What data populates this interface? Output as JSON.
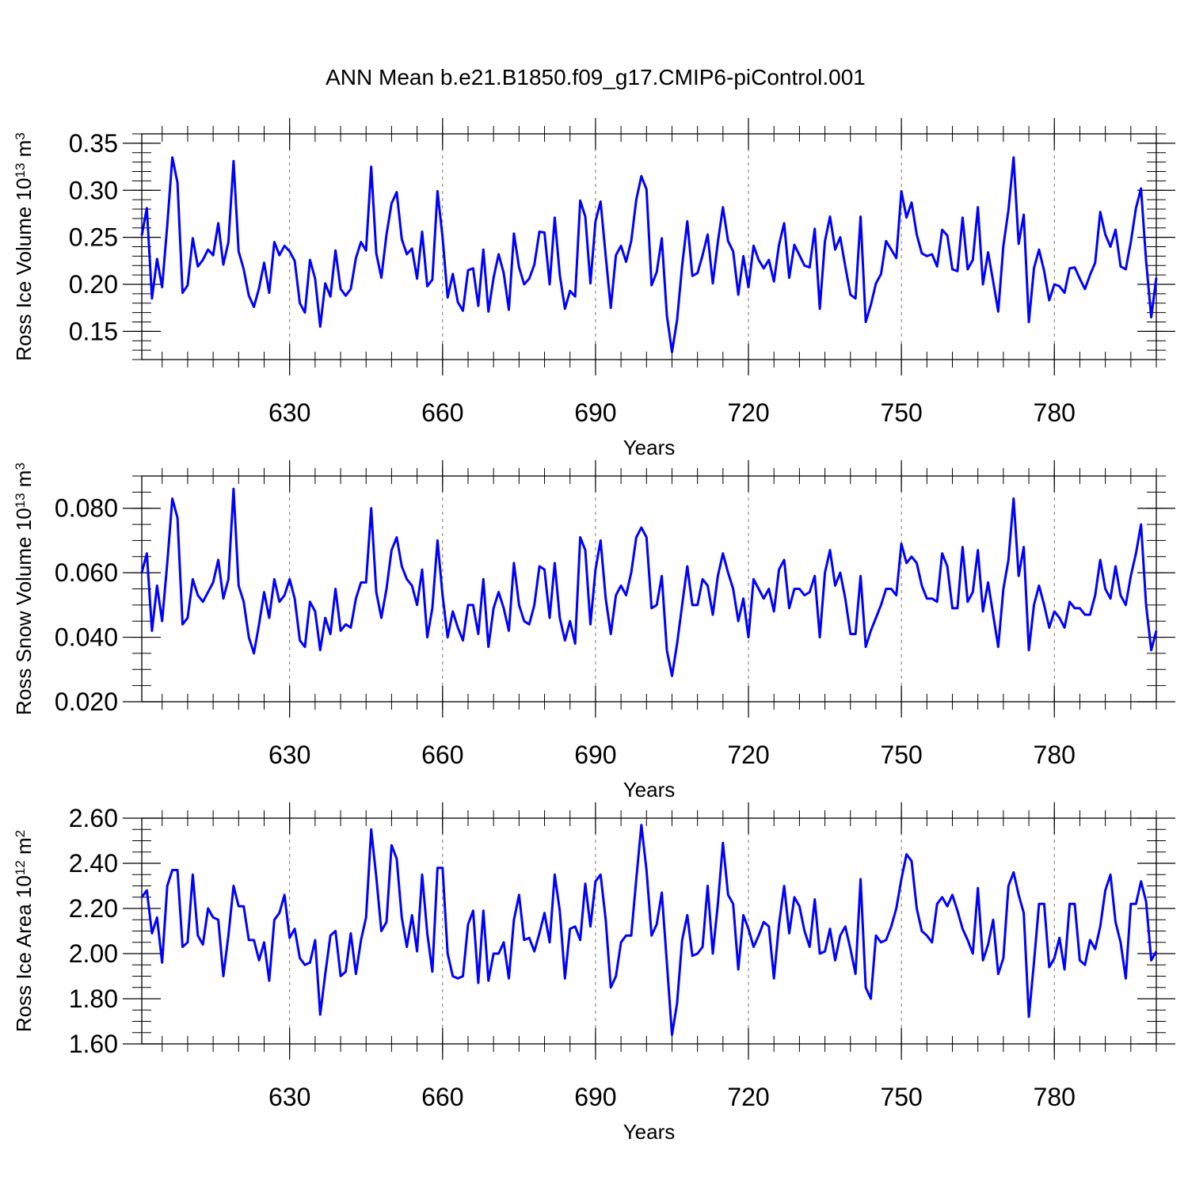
{
  "figure": {
    "title": "ANN Mean b.e21.B1850.f09_g17.CMIP6-piControl.001",
    "line_color": "#0000ff"
  },
  "chart_data": [
    {
      "type": "line",
      "title": "",
      "xlabel": "Years",
      "ylabel": {
        "prefix": "Ross Ice Volume 10",
        "exponent": "13",
        "unit": " m",
        "unit_exp": "3"
      },
      "xlim": [
        601,
        800
      ],
      "ylim": [
        0.12,
        0.36
      ],
      "xticks": [
        630,
        660,
        690,
        720,
        750,
        780
      ],
      "xtick_labels": [
        "630",
        "660",
        "690",
        "720",
        "750",
        "780"
      ],
      "yticks": [
        0.15,
        0.2,
        0.25,
        0.3,
        0.35
      ],
      "ytick_labels": [
        "0.15",
        "0.20",
        "0.25",
        "0.30",
        "0.35"
      ],
      "y_minor_step": 0.01,
      "x_minor_step": 5,
      "grid": "vertical dashed at major x ticks",
      "x_start": 601,
      "values": [
        0.252,
        0.281,
        0.185,
        0.227,
        0.197,
        0.263,
        0.335,
        0.308,
        0.191,
        0.199,
        0.249,
        0.219,
        0.226,
        0.237,
        0.231,
        0.265,
        0.221,
        0.245,
        0.331,
        0.235,
        0.216,
        0.188,
        0.176,
        0.196,
        0.223,
        0.191,
        0.245,
        0.231,
        0.241,
        0.235,
        0.225,
        0.18,
        0.17,
        0.226,
        0.206,
        0.155,
        0.201,
        0.187,
        0.236,
        0.195,
        0.188,
        0.195,
        0.228,
        0.245,
        0.236,
        0.325,
        0.233,
        0.207,
        0.253,
        0.286,
        0.298,
        0.248,
        0.232,
        0.238,
        0.206,
        0.256,
        0.198,
        0.205,
        0.299,
        0.25,
        0.186,
        0.211,
        0.181,
        0.172,
        0.215,
        0.217,
        0.177,
        0.237,
        0.171,
        0.207,
        0.232,
        0.212,
        0.173,
        0.254,
        0.218,
        0.2,
        0.206,
        0.221,
        0.256,
        0.255,
        0.2,
        0.271,
        0.21,
        0.174,
        0.193,
        0.187,
        0.289,
        0.272,
        0.201,
        0.267,
        0.288,
        0.23,
        0.175,
        0.231,
        0.241,
        0.224,
        0.246,
        0.29,
        0.315,
        0.301,
        0.199,
        0.213,
        0.249,
        0.167,
        0.128,
        0.162,
        0.22,
        0.267,
        0.209,
        0.212,
        0.231,
        0.253,
        0.201,
        0.245,
        0.282,
        0.246,
        0.235,
        0.189,
        0.23,
        0.197,
        0.241,
        0.226,
        0.217,
        0.226,
        0.203,
        0.242,
        0.265,
        0.207,
        0.242,
        0.231,
        0.22,
        0.218,
        0.259,
        0.174,
        0.246,
        0.272,
        0.237,
        0.25,
        0.219,
        0.189,
        0.185,
        0.272,
        0.16,
        0.178,
        0.201,
        0.211,
        0.246,
        0.237,
        0.228,
        0.299,
        0.271,
        0.287,
        0.253,
        0.233,
        0.23,
        0.232,
        0.219,
        0.258,
        0.252,
        0.216,
        0.214,
        0.271,
        0.216,
        0.226,
        0.282,
        0.2,
        0.234,
        0.203,
        0.171,
        0.241,
        0.279,
        0.335,
        0.243,
        0.274,
        0.16,
        0.217,
        0.237,
        0.214,
        0.183,
        0.2,
        0.198,
        0.191,
        0.217,
        0.218,
        0.206,
        0.195,
        0.21,
        0.223,
        0.277,
        0.253,
        0.24,
        0.258,
        0.219,
        0.216,
        0.245,
        0.281,
        0.302,
        0.225,
        0.165,
        0.207
      ]
    },
    {
      "type": "line",
      "title": "",
      "xlabel": "Years",
      "ylabel": {
        "prefix": "Ross Snow Volume 10",
        "exponent": "13",
        "unit": " m",
        "unit_exp": "3"
      },
      "xlim": [
        601,
        800
      ],
      "ylim": [
        0.02,
        0.09
      ],
      "xticks": [
        630,
        660,
        690,
        720,
        750,
        780
      ],
      "xtick_labels": [
        "630",
        "660",
        "690",
        "720",
        "750",
        "780"
      ],
      "yticks": [
        0.02,
        0.04,
        0.06,
        0.08
      ],
      "ytick_labels": [
        "0.020",
        "0.040",
        "0.060",
        "0.080"
      ],
      "y_minor_step": 0.005,
      "x_minor_step": 5,
      "grid": "vertical dashed at major x ticks",
      "x_start": 601,
      "values": [
        0.06,
        0.066,
        0.042,
        0.056,
        0.045,
        0.063,
        0.083,
        0.077,
        0.044,
        0.046,
        0.058,
        0.053,
        0.051,
        0.054,
        0.057,
        0.064,
        0.052,
        0.058,
        0.086,
        0.056,
        0.051,
        0.04,
        0.035,
        0.044,
        0.054,
        0.046,
        0.058,
        0.051,
        0.053,
        0.058,
        0.052,
        0.039,
        0.037,
        0.051,
        0.048,
        0.036,
        0.046,
        0.041,
        0.055,
        0.042,
        0.044,
        0.043,
        0.052,
        0.057,
        0.057,
        0.08,
        0.054,
        0.046,
        0.055,
        0.067,
        0.071,
        0.062,
        0.058,
        0.056,
        0.05,
        0.061,
        0.04,
        0.049,
        0.07,
        0.053,
        0.04,
        0.048,
        0.043,
        0.039,
        0.05,
        0.05,
        0.041,
        0.058,
        0.037,
        0.049,
        0.054,
        0.049,
        0.042,
        0.063,
        0.05,
        0.045,
        0.044,
        0.05,
        0.062,
        0.061,
        0.046,
        0.063,
        0.046,
        0.039,
        0.045,
        0.038,
        0.071,
        0.067,
        0.044,
        0.061,
        0.07,
        0.052,
        0.041,
        0.053,
        0.056,
        0.053,
        0.06,
        0.071,
        0.074,
        0.071,
        0.049,
        0.05,
        0.059,
        0.036,
        0.028,
        0.038,
        0.05,
        0.062,
        0.05,
        0.05,
        0.058,
        0.056,
        0.047,
        0.059,
        0.066,
        0.06,
        0.055,
        0.045,
        0.052,
        0.04,
        0.058,
        0.055,
        0.052,
        0.055,
        0.048,
        0.061,
        0.064,
        0.049,
        0.055,
        0.055,
        0.053,
        0.054,
        0.059,
        0.04,
        0.06,
        0.067,
        0.056,
        0.06,
        0.052,
        0.041,
        0.041,
        0.059,
        0.037,
        0.042,
        0.046,
        0.05,
        0.055,
        0.055,
        0.053,
        0.069,
        0.063,
        0.065,
        0.063,
        0.056,
        0.052,
        0.052,
        0.051,
        0.066,
        0.062,
        0.049,
        0.049,
        0.068,
        0.051,
        0.054,
        0.067,
        0.048,
        0.057,
        0.047,
        0.037,
        0.055,
        0.064,
        0.083,
        0.059,
        0.068,
        0.036,
        0.05,
        0.056,
        0.05,
        0.043,
        0.048,
        0.046,
        0.043,
        0.051,
        0.049,
        0.049,
        0.047,
        0.047,
        0.053,
        0.064,
        0.055,
        0.052,
        0.062,
        0.053,
        0.05,
        0.059,
        0.066,
        0.075,
        0.05,
        0.036,
        0.042
      ]
    },
    {
      "type": "line",
      "title": "",
      "xlabel": "Years",
      "ylabel": {
        "prefix": "Ross Ice Area 10",
        "exponent": "12",
        "unit": " m",
        "unit_exp": "2"
      },
      "xlim": [
        601,
        800
      ],
      "ylim": [
        1.6,
        2.6
      ],
      "xticks": [
        630,
        660,
        690,
        720,
        750,
        780
      ],
      "xtick_labels": [
        "630",
        "660",
        "690",
        "720",
        "750",
        "780"
      ],
      "yticks": [
        1.6,
        1.8,
        2.0,
        2.2,
        2.4,
        2.6
      ],
      "ytick_labels": [
        "1.60",
        "1.80",
        "2.00",
        "2.20",
        "2.40",
        "2.60"
      ],
      "y_minor_step": 0.05,
      "x_minor_step": 5,
      "grid": "vertical dashed at major x ticks",
      "x_start": 601,
      "values": [
        2.25,
        2.28,
        2.09,
        2.16,
        1.96,
        2.3,
        2.37,
        2.37,
        2.03,
        2.05,
        2.35,
        2.08,
        2.04,
        2.2,
        2.16,
        2.15,
        1.9,
        2.08,
        2.3,
        2.21,
        2.21,
        2.06,
        2.06,
        1.97,
        2.05,
        1.88,
        2.15,
        2.18,
        2.26,
        2.07,
        2.11,
        1.98,
        1.95,
        1.96,
        2.06,
        1.73,
        1.91,
        2.08,
        2.1,
        1.9,
        1.92,
        2.09,
        1.91,
        2.06,
        2.16,
        2.55,
        2.34,
        2.1,
        2.14,
        2.48,
        2.42,
        2.16,
        2.03,
        2.17,
        2.01,
        2.35,
        2.09,
        1.92,
        2.38,
        2.38,
        2.0,
        1.9,
        1.89,
        1.9,
        2.13,
        2.19,
        1.87,
        2.19,
        1.88,
        2.0,
        2.0,
        2.05,
        1.89,
        2.15,
        2.26,
        2.06,
        2.07,
        2.01,
        2.09,
        2.18,
        2.05,
        2.35,
        2.19,
        1.89,
        2.11,
        2.12,
        2.06,
        2.31,
        2.12,
        2.32,
        2.35,
        2.15,
        1.85,
        1.9,
        2.05,
        2.08,
        2.08,
        2.33,
        2.57,
        2.37,
        2.08,
        2.13,
        2.27,
        1.96,
        1.64,
        1.78,
        2.06,
        2.17,
        1.99,
        2.0,
        2.03,
        2.3,
        2.0,
        2.22,
        2.49,
        2.26,
        2.22,
        1.93,
        2.17,
        2.11,
        2.03,
        2.08,
        2.14,
        2.12,
        1.89,
        2.13,
        2.3,
        2.09,
        2.25,
        2.21,
        2.1,
        2.03,
        2.24,
        2.0,
        2.01,
        2.11,
        1.97,
        2.08,
        2.12,
        2.02,
        1.91,
        2.33,
        1.85,
        1.8,
        2.08,
        2.05,
        2.06,
        2.12,
        2.2,
        2.33,
        2.44,
        2.41,
        2.2,
        2.1,
        2.08,
        2.05,
        2.22,
        2.25,
        2.21,
        2.26,
        2.19,
        2.11,
        2.06,
        2.0,
        2.29,
        1.97,
        2.04,
        2.15,
        1.91,
        1.98,
        2.3,
        2.36,
        2.26,
        2.18,
        1.72,
        1.96,
        2.22,
        2.22,
        1.94,
        1.98,
        2.07,
        1.93,
        2.22,
        2.22,
        1.97,
        1.95,
        2.06,
        2.02,
        2.12,
        2.28,
        2.35,
        2.14,
        2.05,
        1.89,
        2.22,
        2.22,
        2.32,
        2.23,
        1.97,
        2.01
      ]
    }
  ]
}
